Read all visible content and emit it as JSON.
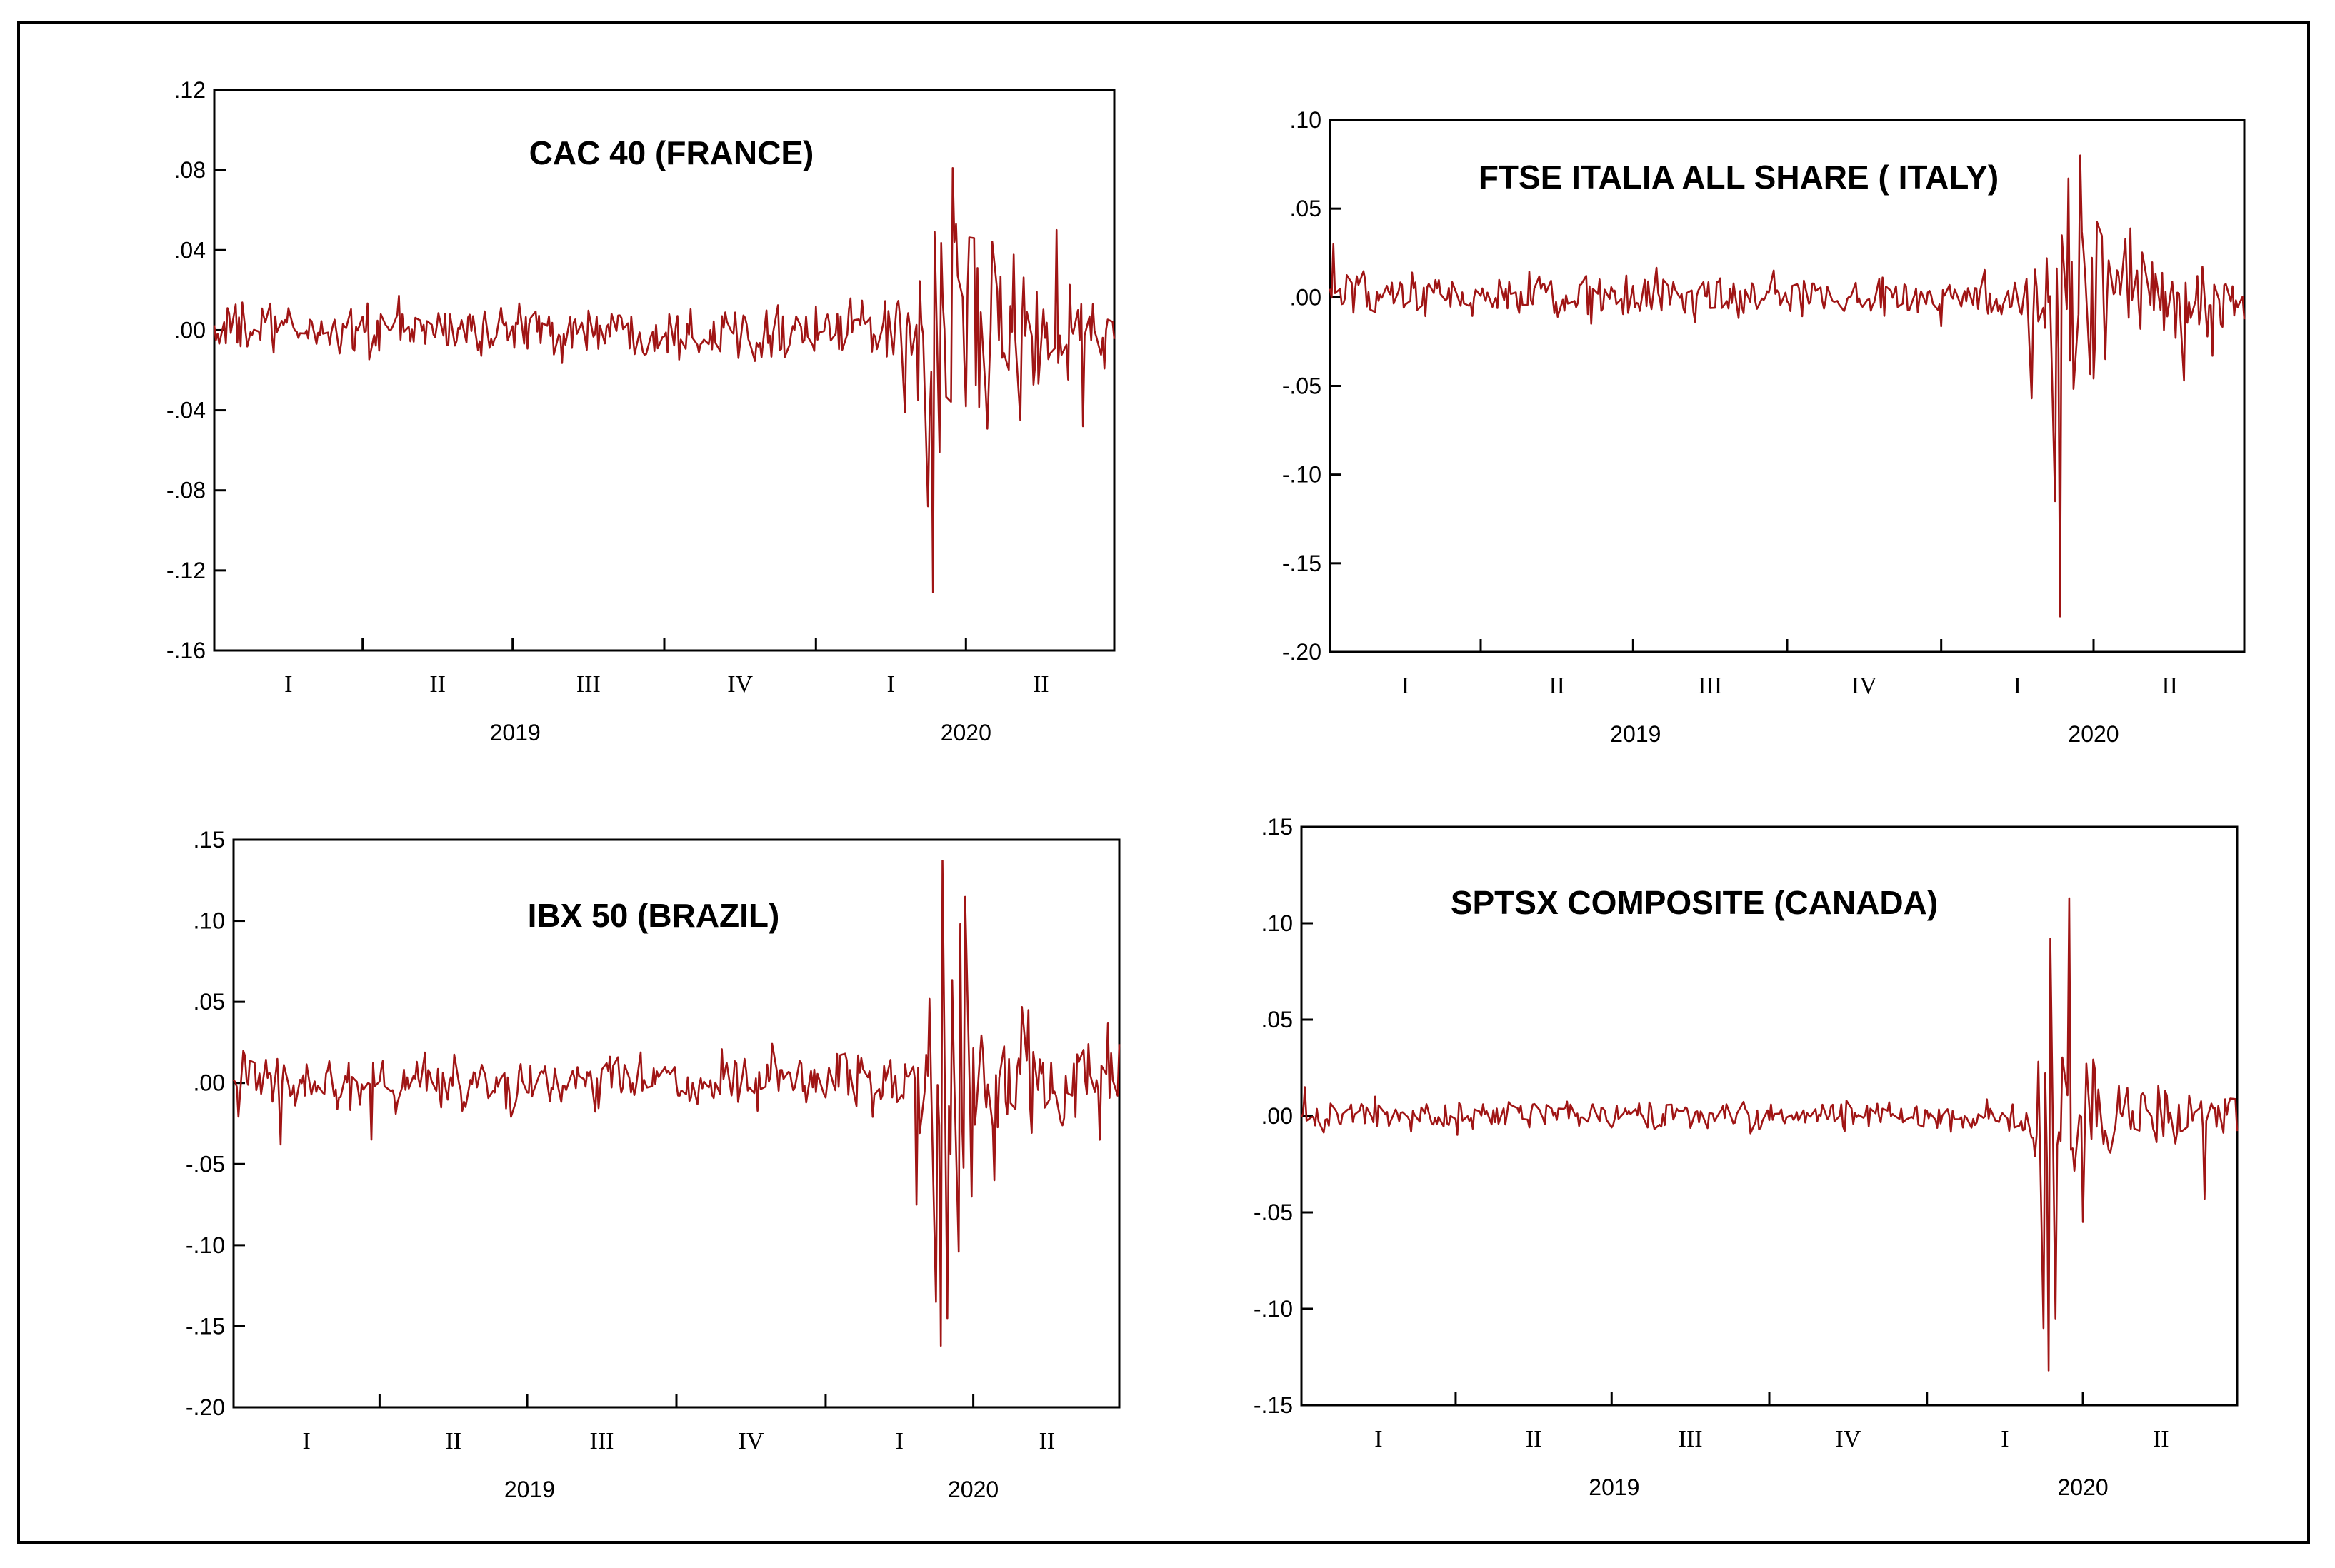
{
  "line_color": "#a01515",
  "chart_data": [
    {
      "type": "line",
      "title": "CAC 40 (FRANCE)",
      "xlabel": "",
      "ylabel": "",
      "x_range": [
        "2019-01-01",
        "2020-06-30"
      ],
      "ylim": [
        -0.16,
        0.12
      ],
      "yticks": [
        0.12,
        0.08,
        0.04,
        0.0,
        -0.04,
        -0.08,
        -0.12,
        -0.16
      ],
      "ytick_labels": [
        ".12",
        ".08",
        ".04",
        ".00",
        "-.04",
        "-.08",
        "-.12",
        "-.16"
      ],
      "quarter_labels": [
        "I",
        "II",
        "III",
        "IV",
        "I",
        "II"
      ],
      "year_labels": [
        "2019",
        "2020"
      ],
      "grid": false,
      "series": [
        {
          "base_volatility": 0.0095,
          "shocks": [
            {
              "date": "2020-02-24",
              "value": -0.041
            },
            {
              "date": "2020-03-03",
              "value": -0.035
            },
            {
              "date": "2020-03-09",
              "value": -0.088
            },
            {
              "date": "2020-03-12",
              "value": -0.131
            },
            {
              "date": "2020-03-16",
              "value": -0.061
            },
            {
              "date": "2020-03-24",
              "value": 0.081
            },
            {
              "date": "2020-03-26",
              "value": 0.053
            },
            {
              "date": "2020-04-06",
              "value": 0.046
            },
            {
              "date": "2020-05-04",
              "value": -0.045
            },
            {
              "date": "2020-05-26",
              "value": 0.05
            },
            {
              "date": "2020-06-11",
              "value": -0.048
            }
          ]
        }
      ]
    },
    {
      "type": "line",
      "title": "FTSE ITALIA ALL SHARE ( ITALY)",
      "xlabel": "",
      "ylabel": "",
      "x_range": [
        "2019-01-01",
        "2020-06-30"
      ],
      "ylim": [
        -0.2,
        0.1
      ],
      "yticks": [
        0.1,
        0.05,
        0.0,
        -0.05,
        -0.1,
        -0.15,
        -0.2
      ],
      "ytick_labels": [
        ".10",
        ".05",
        ".00",
        "-.05",
        "-.10",
        "-.15",
        "-.20"
      ],
      "quarter_labels": [
        "I",
        "II",
        "III",
        "IV",
        "I",
        "II"
      ],
      "year_labels": [
        "2019",
        "2020"
      ],
      "grid": false,
      "series": [
        {
          "base_volatility": 0.009,
          "shocks": [
            {
              "date": "2019-01-03",
              "value": 0.03
            },
            {
              "date": "2020-02-24",
              "value": -0.057
            },
            {
              "date": "2020-03-09",
              "value": -0.115
            },
            {
              "date": "2020-03-12",
              "value": -0.18
            },
            {
              "date": "2020-03-17",
              "value": 0.067
            },
            {
              "date": "2020-03-24",
              "value": 0.08
            },
            {
              "date": "2020-05-25",
              "value": -0.047
            },
            {
              "date": "2020-06-11",
              "value": -0.033
            }
          ]
        }
      ]
    },
    {
      "type": "line",
      "title": "IBX 50 (BRAZIL)",
      "xlabel": "",
      "ylabel": "",
      "x_range": [
        "2019-01-01",
        "2020-06-30"
      ],
      "ylim": [
        -0.2,
        0.15
      ],
      "yticks": [
        0.15,
        0.1,
        0.05,
        0.0,
        -0.05,
        -0.1,
        -0.15,
        -0.2
      ],
      "ytick_labels": [
        ".15",
        ".10",
        ".05",
        ".00",
        "-.05",
        "-.10",
        "-.15",
        "-.20"
      ],
      "quarter_labels": [
        "I",
        "II",
        "III",
        "IV",
        "I",
        "II"
      ],
      "year_labels": [
        "2019",
        "2020"
      ],
      "grid": false,
      "series": [
        {
          "base_volatility": 0.012,
          "shocks": [
            {
              "date": "2019-01-30",
              "value": -0.038
            },
            {
              "date": "2019-03-27",
              "value": -0.035
            },
            {
              "date": "2020-02-26",
              "value": -0.075
            },
            {
              "date": "2020-03-09",
              "value": -0.135
            },
            {
              "date": "2020-03-12",
              "value": -0.162
            },
            {
              "date": "2020-03-13",
              "value": 0.137
            },
            {
              "date": "2020-03-16",
              "value": -0.145
            },
            {
              "date": "2020-03-24",
              "value": 0.098
            },
            {
              "date": "2020-04-14",
              "value": -0.06
            },
            {
              "date": "2020-05-05",
              "value": 0.045
            }
          ]
        }
      ]
    },
    {
      "type": "line",
      "title": "SPTSX COMPOSITE (CANADA)",
      "xlabel": "",
      "ylabel": "",
      "x_range": [
        "2019-01-01",
        "2020-06-30"
      ],
      "ylim": [
        -0.15,
        0.15
      ],
      "yticks": [
        0.15,
        0.1,
        0.05,
        0.0,
        -0.05,
        -0.1,
        -0.15
      ],
      "ytick_labels": [
        ".15",
        ".10",
        ".05",
        ".00",
        "-.05",
        "-.10",
        "-.15"
      ],
      "quarter_labels": [
        "I",
        "II",
        "III",
        "IV",
        "I",
        "II"
      ],
      "year_labels": [
        "2019",
        "2020"
      ],
      "grid": false,
      "series": [
        {
          "base_volatility": 0.0055,
          "shocks": [
            {
              "date": "2019-01-03",
              "value": 0.015
            },
            {
              "date": "2020-03-09",
              "value": -0.11
            },
            {
              "date": "2020-03-12",
              "value": -0.132
            },
            {
              "date": "2020-03-13",
              "value": 0.092
            },
            {
              "date": "2020-03-16",
              "value": -0.105
            },
            {
              "date": "2020-03-24",
              "value": 0.113
            },
            {
              "date": "2020-04-01",
              "value": -0.055
            },
            {
              "date": "2020-06-11",
              "value": -0.043
            }
          ]
        }
      ]
    }
  ]
}
